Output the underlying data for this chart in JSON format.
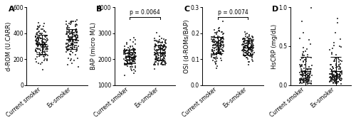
{
  "panels": [
    {
      "label": "A",
      "ylabel": "d-ROM (U.CARR)",
      "ylim": [
        0,
        600
      ],
      "yticks": [
        0,
        200,
        400,
        600
      ],
      "ytick_labels": [
        "0",
        "200",
        "400",
        "600"
      ],
      "groups": [
        "Current smoker",
        "Ex-smoker"
      ],
      "means": [
        315,
        355
      ],
      "sds": [
        75,
        75
      ],
      "n": [
        150,
        150
      ],
      "pvalue": null,
      "seed": 11
    },
    {
      "label": "B",
      "ylabel": "BAP (micro M/L)",
      "ylim": [
        1000,
        4000
      ],
      "yticks": [
        1000,
        2000,
        3000,
        4000
      ],
      "ytick_labels": [
        "1000",
        "2000",
        "3000",
        "4000"
      ],
      "groups": [
        "Current smoker",
        "Ex-smoker"
      ],
      "means": [
        2100,
        2250
      ],
      "sds": [
        260,
        280
      ],
      "n": [
        150,
        150
      ],
      "pvalue": "p = 0.0064",
      "seed": 22
    },
    {
      "label": "C",
      "ylabel": "OSI (d-ROMs/BAP)",
      "ylim": [
        0.0,
        0.3
      ],
      "yticks": [
        0.0,
        0.1,
        0.2,
        0.3
      ],
      "ytick_labels": [
        "0.0",
        "0.1",
        "0.2",
        "0.3"
      ],
      "groups": [
        "Current smoker",
        "Ex-smoker"
      ],
      "means": [
        0.155,
        0.145
      ],
      "sds": [
        0.032,
        0.028
      ],
      "n": [
        150,
        150
      ],
      "pvalue": "p = 0.0074",
      "seed": 33
    },
    {
      "label": "D",
      "ylabel": "HsCRP (mg/dL)",
      "ylim": [
        0.0,
        1.0
      ],
      "yticks": [
        0.0,
        0.5,
        1.0
      ],
      "ytick_labels": [
        "0.0",
        "0.5",
        "1.0"
      ],
      "groups": [
        "Current smoker",
        "Ex-smoker"
      ],
      "means": [
        0.18,
        0.18
      ],
      "sds": [
        0.18,
        0.18
      ],
      "n": [
        150,
        150
      ],
      "pvalue": null,
      "seed": 44
    }
  ],
  "dot_color": "#1a1a1a",
  "dot_size": 1.5,
  "dot_alpha": 0.75,
  "dot_marker": "s",
  "mean_line_color": "#000000",
  "background_color": "#ffffff",
  "panel_label_fontsize": 8,
  "tick_fontsize": 5.5,
  "ylabel_fontsize": 6.0,
  "xticklabel_fontsize": 6.0,
  "pvalue_fontsize": 5.5
}
